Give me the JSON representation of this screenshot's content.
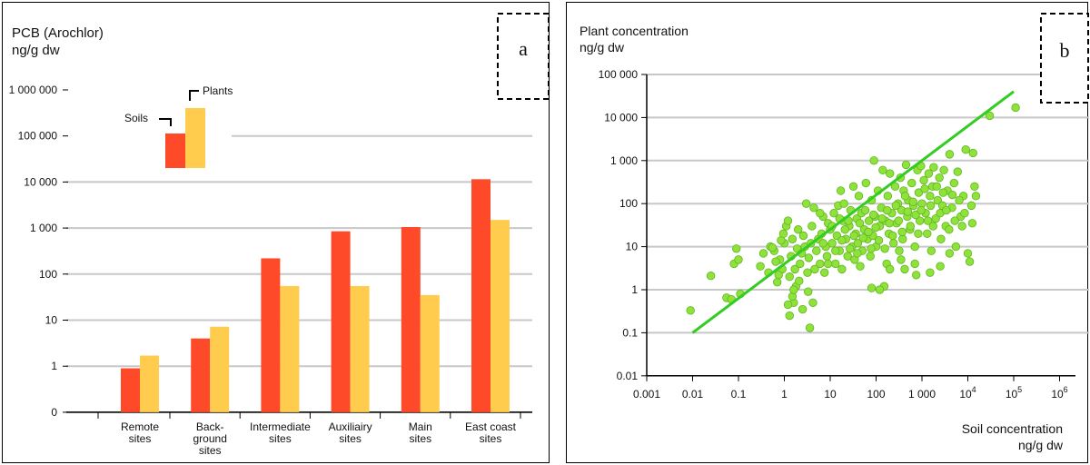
{
  "chart_data": [
    {
      "panel_label": "a",
      "type": "bar",
      "scale": "log",
      "title": "PCB (Arochlor)",
      "ylabel": "ng/g dw",
      "ytick_labels": [
        "0",
        "1",
        "10",
        "100",
        "1 000",
        "10 000",
        "100 000",
        "1 000 000"
      ],
      "categories": [
        "Remote\nsites",
        "Back-\nground\nsites",
        "Intermediate\nsites",
        "Auxiliairy\nsites",
        "Main\nsites",
        "East coast\nsites"
      ],
      "series": [
        {
          "name": "Soils",
          "color": "#ff4a2a",
          "values": [
            0.9,
            4,
            220,
            850,
            1050,
            11500
          ]
        },
        {
          "name": "Plants",
          "color": "#ffcc4d",
          "values": [
            1.7,
            7.2,
            55,
            55,
            35,
            1500
          ]
        }
      ],
      "legend_placement": "top-left",
      "grid": true
    },
    {
      "panel_label": "b",
      "type": "scatter",
      "scale": "log-log",
      "title": "Plant concentration",
      "ylabel": "ng/g dw",
      "xlabel_line1": "Soil concentration",
      "xlabel_line2": "ng/g dw",
      "ytick_labels": [
        "0.01",
        "0.1",
        "1",
        "10",
        "100",
        "1 000",
        "10 000",
        "100 000"
      ],
      "xtick_labels": [
        "0.001",
        "0.01",
        "0.1",
        "1",
        "10",
        "100",
        "1 000",
        "10^4",
        "10^5",
        "10^6"
      ],
      "point_color": "#8fe23a",
      "line_color": "#33cc22",
      "fit_line": [
        [
          0.01,
          0.1
        ],
        [
          100000,
          40000
        ]
      ],
      "grid": true,
      "points": [
        [
          0.009,
          0.33
        ],
        [
          0.025,
          2.1
        ],
        [
          0.055,
          0.65
        ],
        [
          0.07,
          0.6
        ],
        [
          0.08,
          4
        ],
        [
          0.09,
          9
        ],
        [
          0.1,
          5
        ],
        [
          0.11,
          0.8
        ],
        [
          0.3,
          3.5
        ],
        [
          0.35,
          7
        ],
        [
          0.5,
          10
        ],
        [
          0.6,
          8
        ],
        [
          0.7,
          1.5
        ],
        [
          0.8,
          5
        ],
        [
          0.9,
          3
        ],
        [
          1,
          12
        ],
        [
          1.1,
          30
        ],
        [
          1.2,
          40
        ],
        [
          0.45,
          2.5
        ],
        [
          0.55,
          9.5
        ],
        [
          0.65,
          4.5
        ],
        [
          0.75,
          2.2
        ],
        [
          0.85,
          14
        ],
        [
          0.95,
          20
        ],
        [
          1.3,
          2
        ],
        [
          1.4,
          6
        ],
        [
          1.5,
          15
        ],
        [
          1.6,
          0.5
        ],
        [
          1.7,
          3
        ],
        [
          1.8,
          1.2
        ],
        [
          1.9,
          9
        ],
        [
          2,
          25
        ],
        [
          2.2,
          4
        ],
        [
          2.4,
          7
        ],
        [
          2.6,
          18
        ],
        [
          2.8,
          10
        ],
        [
          3,
          100
        ],
        [
          3.2,
          2.5
        ],
        [
          3.4,
          5.5
        ],
        [
          3.6,
          0.13
        ],
        [
          3.8,
          12
        ],
        [
          4,
          30
        ],
        [
          4.2,
          0.5
        ],
        [
          4.4,
          80
        ],
        [
          4.6,
          3
        ],
        [
          1.3,
          0.25
        ],
        [
          1.5,
          0.7
        ],
        [
          2.5,
          0.35
        ],
        [
          3.3,
          0.9
        ],
        [
          1.6,
          1
        ],
        [
          1.2,
          0.45
        ],
        [
          2.1,
          1.6
        ],
        [
          5,
          8
        ],
        [
          5.5,
          15
        ],
        [
          6,
          4
        ],
        [
          6.5,
          20
        ],
        [
          7,
          50
        ],
        [
          7.5,
          2.5
        ],
        [
          8,
          10
        ],
        [
          8.5,
          6
        ],
        [
          9,
          35
        ],
        [
          10,
          25
        ],
        [
          11,
          12
        ],
        [
          12,
          60
        ],
        [
          13,
          4
        ],
        [
          14,
          18
        ],
        [
          15,
          90
        ],
        [
          16,
          8
        ],
        [
          17,
          200
        ],
        [
          18,
          3
        ],
        [
          19,
          40
        ],
        [
          20,
          100
        ],
        [
          22,
          15
        ],
        [
          24,
          6
        ],
        [
          26,
          30
        ],
        [
          28,
          70
        ],
        [
          30,
          10
        ],
        [
          32,
          250
        ],
        [
          34,
          5
        ],
        [
          36,
          20
        ],
        [
          38,
          45
        ],
        [
          40,
          12
        ],
        [
          42,
          150
        ],
        [
          45,
          3.5
        ],
        [
          48,
          60
        ],
        [
          50,
          8
        ],
        [
          55,
          25
        ],
        [
          60,
          300
        ],
        [
          65,
          15
        ],
        [
          70,
          40
        ],
        [
          75,
          6
        ],
        [
          80,
          120
        ],
        [
          85,
          18
        ],
        [
          90,
          1000
        ],
        [
          95,
          50
        ],
        [
          100,
          10
        ],
        [
          110,
          200
        ],
        [
          120,
          30
        ],
        [
          130,
          80
        ],
        [
          140,
          600
        ],
        [
          150,
          1.2
        ],
        [
          160,
          40
        ],
        [
          170,
          4
        ],
        [
          180,
          150
        ],
        [
          190,
          20
        ],
        [
          200,
          500
        ],
        [
          220,
          60
        ],
        [
          240,
          12
        ],
        [
          260,
          250
        ],
        [
          280,
          35
        ],
        [
          300,
          100
        ],
        [
          320,
          8
        ],
        [
          340,
          400
        ],
        [
          360,
          70
        ],
        [
          380,
          15
        ],
        [
          400,
          200
        ],
        [
          420,
          3
        ],
        [
          450,
          800
        ],
        [
          480,
          50
        ],
        [
          500,
          120
        ],
        [
          550,
          25
        ],
        [
          600,
          300
        ],
        [
          650,
          90
        ],
        [
          700,
          10
        ],
        [
          750,
          2.2
        ],
        [
          800,
          600
        ],
        [
          850,
          180
        ],
        [
          900,
          40
        ],
        [
          950,
          750
        ],
        [
          1000,
          100
        ],
        [
          1100,
          350
        ],
        [
          1200,
          60
        ],
        [
          1300,
          20
        ],
        [
          1400,
          500
        ],
        [
          1500,
          150
        ],
        [
          1600,
          8
        ],
        [
          1700,
          250
        ],
        [
          1800,
          700
        ],
        [
          2000,
          45
        ],
        [
          2200,
          120
        ],
        [
          2400,
          400
        ],
        [
          2600,
          15
        ],
        [
          2800,
          90
        ],
        [
          3000,
          600
        ],
        [
          3300,
          30
        ],
        [
          3600,
          200
        ],
        [
          4000,
          1400
        ],
        [
          4500,
          80
        ],
        [
          5000,
          300
        ],
        [
          5500,
          10
        ],
        [
          6000,
          550
        ],
        [
          7000,
          50
        ],
        [
          8000,
          150
        ],
        [
          9000,
          1800
        ],
        [
          10000,
          7
        ],
        [
          11000,
          4.5
        ],
        [
          12000,
          90
        ],
        [
          13000,
          1500
        ],
        [
          14000,
          250
        ],
        [
          15000,
          150
        ],
        [
          30000,
          11000
        ],
        [
          110000,
          17000
        ],
        [
          6,
          60
        ],
        [
          7,
          12
        ],
        [
          9,
          4
        ],
        [
          11,
          30
        ],
        [
          13,
          8
        ],
        [
          16,
          45
        ],
        [
          18,
          14
        ],
        [
          21,
          25
        ],
        [
          25,
          40
        ],
        [
          27,
          9
        ],
        [
          33,
          18
        ],
        [
          39,
          7
        ],
        [
          44,
          35
        ],
        [
          52,
          16
        ],
        [
          58,
          70
        ],
        [
          68,
          22
        ],
        [
          78,
          9
        ],
        [
          88,
          55
        ],
        [
          98,
          28
        ],
        [
          115,
          14
        ],
        [
          135,
          45
        ],
        [
          155,
          9
        ],
        [
          175,
          70
        ],
        [
          195,
          35
        ],
        [
          230,
          18
        ],
        [
          270,
          90
        ],
        [
          310,
          40
        ],
        [
          370,
          22
        ],
        [
          430,
          150
        ],
        [
          490,
          65
        ],
        [
          560,
          30
        ],
        [
          640,
          110
        ],
        [
          730,
          55
        ],
        [
          830,
          20
        ],
        [
          960,
          70
        ],
        [
          1150,
          220
        ],
        [
          1350,
          40
        ],
        [
          1550,
          90
        ],
        [
          1750,
          30
        ],
        [
          2100,
          250
        ],
        [
          2500,
          60
        ],
        [
          2900,
          180
        ],
        [
          3400,
          70
        ],
        [
          3900,
          25
        ],
        [
          4600,
          160
        ],
        [
          5200,
          40
        ],
        [
          6500,
          120
        ],
        [
          7500,
          30
        ],
        [
          8500,
          60
        ],
        [
          12500,
          35
        ],
        [
          80,
          1.1
        ],
        [
          120,
          1.0
        ],
        [
          200,
          3
        ],
        [
          350,
          5
        ],
        [
          700,
          4
        ],
        [
          1500,
          2.5
        ],
        [
          2500,
          3.5
        ],
        [
          4000,
          7
        ]
      ]
    }
  ]
}
